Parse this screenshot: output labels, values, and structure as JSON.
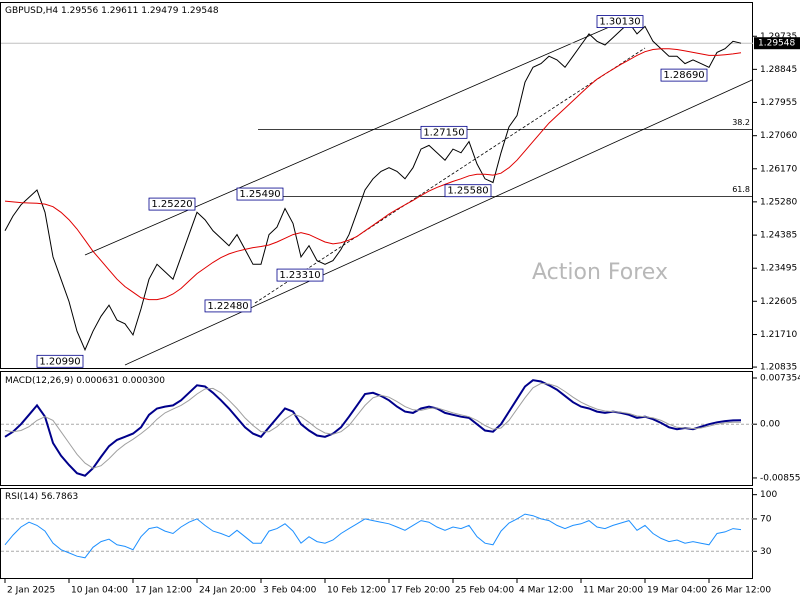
{
  "chart_data": [
    {
      "type": "line",
      "title": "GBPUSD,H4",
      "ohlc": [
        1.29556,
        1.29611,
        1.29479,
        1.29548
      ],
      "watermark": "Action Forex",
      "ylim": [
        1.2081,
        1.3063
      ],
      "yticks": [
        {
          "value": 1.29735,
          "label": "1.29735"
        },
        {
          "value": 1.28845,
          "label": "1.28845"
        },
        {
          "value": 1.27955,
          "label": "1.27955"
        },
        {
          "value": 1.2706,
          "label": "1.27060"
        },
        {
          "value": 1.2617,
          "label": "1.26170"
        },
        {
          "value": 1.2528,
          "label": "1.25280"
        },
        {
          "value": 1.24385,
          "label": "1.24385"
        },
        {
          "value": 1.23495,
          "label": "1.23495"
        },
        {
          "value": 1.22605,
          "label": "1.22605"
        },
        {
          "value": 1.2171,
          "label": "1.21710"
        },
        {
          "value": 1.20835,
          "label": "1.20835"
        }
      ],
      "series": [
        {
          "color": "#000000",
          "values": [
            1.245,
            1.249,
            1.252,
            1.254,
            1.256,
            1.25,
            1.238,
            1.232,
            1.226,
            1.218,
            1.213,
            1.218,
            1.222,
            1.225,
            1.221,
            1.22,
            1.217,
            1.224,
            1.232,
            1.236,
            1.234,
            1.232,
            1.238,
            1.244,
            1.25,
            1.248,
            1.245,
            1.243,
            1.241,
            1.244,
            1.24,
            1.236,
            1.236,
            1.244,
            1.246,
            1.251,
            1.247,
            1.238,
            1.241,
            1.237,
            1.236,
            1.237,
            1.24,
            1.244,
            1.25,
            1.256,
            1.259,
            1.261,
            1.262,
            1.261,
            1.259,
            1.262,
            1.267,
            1.268,
            1.266,
            1.264,
            1.267,
            1.266,
            1.269,
            1.263,
            1.259,
            1.258,
            1.266,
            1.273,
            1.276,
            1.285,
            1.289,
            1.29,
            1.292,
            1.291,
            1.289,
            1.292,
            1.295,
            1.298,
            1.296,
            1.295,
            1.297,
            1.299,
            1.301,
            1.298,
            1.3,
            1.296,
            1.294,
            1.292,
            1.292,
            1.29,
            1.291,
            1.29,
            1.289,
            1.293,
            1.294,
            1.296,
            1.29548
          ]
        },
        {
          "color": "#e00000",
          "values": [
            1.253,
            1.2528,
            1.2526,
            1.2525,
            1.2524,
            1.2522,
            1.2515,
            1.25,
            1.248,
            1.2455,
            1.2425,
            1.2395,
            1.237,
            1.2345,
            1.232,
            1.23,
            1.2285,
            1.227,
            1.2265,
            1.2265,
            1.227,
            1.228,
            1.2295,
            1.2315,
            1.2335,
            1.235,
            1.2365,
            1.2378,
            1.2388,
            1.2395,
            1.24,
            1.2405,
            1.2408,
            1.2412,
            1.242,
            1.243,
            1.244,
            1.2445,
            1.244,
            1.243,
            1.242,
            1.2415,
            1.2418,
            1.2425,
            1.2435,
            1.245,
            1.2465,
            1.248,
            1.2495,
            1.2508,
            1.252,
            1.2532,
            1.2545,
            1.2557,
            1.2567,
            1.2575,
            1.2583,
            1.259,
            1.2598,
            1.2602,
            1.2602,
            1.26,
            1.2605,
            1.262,
            1.264,
            1.2665,
            1.269,
            1.2715,
            1.274,
            1.276,
            1.278,
            1.28,
            1.282,
            1.284,
            1.2858,
            1.2872,
            1.2885,
            1.2898,
            1.291,
            1.2922,
            1.2932,
            1.2938,
            1.294,
            1.294,
            1.2938,
            1.2934,
            1.293,
            1.2926,
            1.2922,
            1.2922,
            1.2924,
            1.2926,
            1.2929
          ]
        }
      ],
      "annotations": [
        {
          "label": "1.20990",
          "value": 1.2099,
          "x": 10
        },
        {
          "label": "1.25220",
          "value": 1.2522,
          "x": 24
        },
        {
          "label": "1.25490",
          "value": 1.2549,
          "x": 35
        },
        {
          "label": "1.22480",
          "value": 1.2248,
          "x": 31
        },
        {
          "label": "1.23310",
          "value": 1.2331,
          "x": 40
        },
        {
          "label": "1.27150",
          "value": 1.2715,
          "x": 58
        },
        {
          "label": "1.25580",
          "value": 1.2558,
          "x": 61
        },
        {
          "label": "1.30130",
          "value": 1.3013,
          "x": 80
        },
        {
          "label": "1.28690",
          "value": 1.2869,
          "x": 88
        }
      ],
      "levels": [
        {
          "label": "38.2",
          "value": 1.2723
        },
        {
          "label": "61.8",
          "value": 1.2542
        }
      ]
    },
    {
      "type": "line",
      "title": "MACD(12,26,9)",
      "readout": [
        0.000631,
        {
          "value": 0.0003,
          "label": "0.000300"
        }
      ],
      "ylim": [
        -0.00968,
        0.00831
      ],
      "yticks": [
        0.007354,
        {
          "value": 0,
          "label": "0.00"
        },
        -0.008558
      ],
      "series": [
        {
          "color": "#00008b",
          "values": [
            -0.002,
            -0.0012,
            0.0,
            0.0015,
            0.003,
            0.0012,
            -0.003,
            -0.005,
            -0.0065,
            -0.0078,
            -0.0082,
            -0.007,
            -0.0052,
            -0.0035,
            -0.0025,
            -0.002,
            -0.0015,
            -0.0005,
            0.0015,
            0.0025,
            0.0028,
            0.003,
            0.0038,
            0.005,
            0.0062,
            0.006,
            0.005,
            0.0038,
            0.0025,
            0.001,
            -0.0005,
            -0.0015,
            -0.002,
            -0.0005,
            0.001,
            0.0025,
            0.002,
            0.0,
            -0.001,
            -0.0018,
            -0.002,
            -0.0015,
            -0.0005,
            0.0012,
            0.003,
            0.0048,
            0.005,
            0.0045,
            0.0038,
            0.0028,
            0.002,
            0.0018,
            0.0025,
            0.0028,
            0.0025,
            0.0018,
            0.0015,
            0.0012,
            0.001,
            0.0,
            -0.001,
            -0.0012,
            0.0,
            0.002,
            0.004,
            0.006,
            0.007,
            0.0068,
            0.0062,
            0.0055,
            0.0045,
            0.0035,
            0.0028,
            0.0025,
            0.002,
            0.0018,
            0.002,
            0.0018,
            0.0015,
            0.001,
            0.0012,
            0.0008,
            0.0002,
            -0.0005,
            -0.0008,
            -0.0006,
            -0.0008,
            -0.0004,
            0.0,
            0.0003,
            0.0005,
            0.0006,
            0.000631
          ]
        },
        {
          "color": "#a0a0a0",
          "values": [
            -0.001,
            -0.0012,
            -0.001,
            -0.0004,
            0.0006,
            0.0012,
            0.0006,
            -0.0012,
            -0.003,
            -0.0048,
            -0.0062,
            -0.007,
            -0.0066,
            -0.0055,
            -0.0042,
            -0.0032,
            -0.0024,
            -0.0015,
            -0.0005,
            0.0008,
            0.0018,
            0.0024,
            0.003,
            0.0038,
            0.0048,
            0.0056,
            0.0057,
            0.005,
            0.0038,
            0.0025,
            0.001,
            -0.0002,
            -0.0012,
            -0.0012,
            -0.0004,
            0.0008,
            0.0016,
            0.0012,
            0.0003,
            -0.0007,
            -0.0014,
            -0.0016,
            -0.0012,
            -0.0002,
            0.0014,
            0.003,
            0.0042,
            0.0046,
            0.0043,
            0.0036,
            0.0028,
            0.0023,
            0.0022,
            0.0025,
            0.0026,
            0.0022,
            0.0018,
            0.0015,
            0.0012,
            0.0006,
            -0.0002,
            -0.0008,
            -0.0006,
            0.0006,
            0.0024,
            0.0042,
            0.0058,
            0.0065,
            0.0064,
            0.006,
            0.0052,
            0.0043,
            0.0035,
            0.0029,
            0.0024,
            0.0021,
            0.002,
            0.0019,
            0.0017,
            0.0013,
            0.0012,
            0.001,
            0.0006,
            0.0,
            -0.0005,
            -0.0006,
            -0.0007,
            -0.0006,
            -0.0003,
            0.0,
            0.0002,
            0.0003,
            0.0003
          ]
        }
      ]
    },
    {
      "type": "line",
      "title": "RSI(14)",
      "readout": [
        56.7863
      ],
      "ylim": [
        -3,
        107
      ],
      "yticks": [
        100,
        70,
        30
      ],
      "levels": [
        70,
        30
      ],
      "xlim": [
        -0.5,
        93.5
      ],
      "xticks": [
        {
          "value": 0,
          "label": "2 Jan 2025"
        },
        {
          "value": 8,
          "label": "10 Jan 04:00"
        },
        {
          "value": 16,
          "label": "17 Jan 12:00"
        },
        {
          "value": 24,
          "label": "24 Jan 20:00"
        },
        {
          "value": 32,
          "label": "3 Feb 04:00"
        },
        {
          "value": 40,
          "label": "10 Feb 12:00"
        },
        {
          "value": 48,
          "label": "17 Feb 20:00"
        },
        {
          "value": 56,
          "label": "25 Feb 04:00"
        },
        {
          "value": 64,
          "label": "4 Mar 12:00"
        },
        {
          "value": 72,
          "label": "11 Mar 20:00"
        },
        {
          "value": 80,
          "label": "19 Mar 04:00"
        },
        {
          "value": 88,
          "label": "26 Mar 12:00"
        }
      ],
      "series": [
        {
          "color": "#1e90ff",
          "values": [
            38,
            50,
            60,
            66,
            62,
            55,
            40,
            32,
            28,
            24,
            22,
            35,
            42,
            45,
            38,
            36,
            32,
            48,
            58,
            60,
            55,
            52,
            60,
            66,
            70,
            62,
            55,
            52,
            48,
            56,
            48,
            40,
            40,
            55,
            58,
            64,
            55,
            40,
            48,
            42,
            40,
            44,
            52,
            58,
            64,
            70,
            68,
            66,
            64,
            60,
            56,
            62,
            68,
            66,
            60,
            56,
            60,
            58,
            62,
            48,
            40,
            38,
            55,
            65,
            70,
            76,
            74,
            70,
            68,
            62,
            58,
            62,
            64,
            68,
            60,
            58,
            62,
            65,
            68,
            56,
            62,
            52,
            46,
            42,
            44,
            40,
            42,
            40,
            38,
            52,
            54,
            58,
            56.7863
          ]
        }
      ]
    }
  ]
}
